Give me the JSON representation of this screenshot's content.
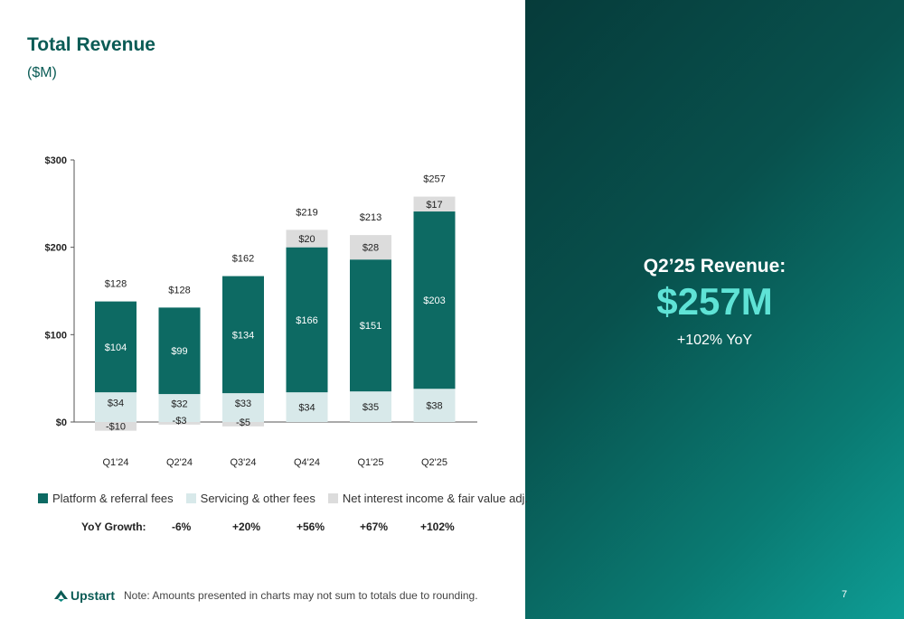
{
  "slide": {
    "title": "Total Revenue",
    "subtitle": "($M)",
    "note": "Note: Amounts presented in charts may not sum to totals due to rounding.",
    "page_number": "7",
    "logo_text": "Upstart",
    "logo_icon": "upstart-chevron-icon"
  },
  "highlight": {
    "title": "Q2’25 Revenue:",
    "value": "$257M",
    "yoy": "+102% YoY"
  },
  "legend": [
    {
      "label": "Platform & referral fees",
      "color": "#0d6a63"
    },
    {
      "label": "Servicing & other fees",
      "color": "#d8e9ea"
    },
    {
      "label": "Net interest income & fair value adj.",
      "color": "#dcdcdc"
    }
  ],
  "growth": {
    "label": "YoY Growth:",
    "values": [
      "-6%",
      "+20%",
      "+56%",
      "+67%",
      "+102%"
    ]
  },
  "chart_data": {
    "type": "bar",
    "stacked": true,
    "categories": [
      "Q1'24",
      "Q2'24",
      "Q3'24",
      "Q4'24",
      "Q1'25",
      "Q2'25"
    ],
    "series": [
      {
        "name": "Servicing & other fees",
        "values": [
          34,
          32,
          33,
          34,
          35,
          38
        ],
        "labels": [
          "$34",
          "$32",
          "$33",
          "$34",
          "$35",
          "$38"
        ],
        "color": "#d8e9ea"
      },
      {
        "name": "Platform & referral fees",
        "values": [
          104,
          99,
          134,
          166,
          151,
          203
        ],
        "labels": [
          "$104",
          "$99",
          "$134",
          "$166",
          "$151",
          "$203"
        ],
        "color": "#0d6a63"
      },
      {
        "name": "Net interest income & fair value adj.",
        "values": [
          -10,
          -3,
          -5,
          20,
          28,
          17
        ],
        "labels": [
          "-$10",
          "-$3",
          "-$5",
          "$20",
          "$28",
          "$17"
        ],
        "color": "#dcdcdc"
      }
    ],
    "totals": [
      128,
      128,
      162,
      219,
      213,
      257
    ],
    "total_labels": [
      "$128",
      "$128",
      "$162",
      "$219",
      "$213",
      "$257"
    ],
    "yticks": [
      0,
      100,
      200,
      300
    ],
    "ytick_labels": [
      "$0",
      "$100",
      "$200",
      "$300"
    ],
    "ylim": [
      -15,
      300
    ],
    "title": "",
    "xlabel": "",
    "ylabel": ""
  }
}
